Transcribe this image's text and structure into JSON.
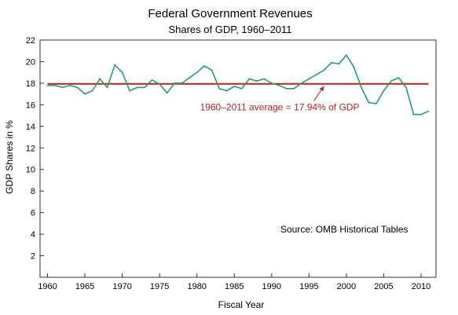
{
  "chart_data": {
    "type": "line",
    "title": "Federal Government Revenues",
    "subtitle": "Shares of GDP, 1960–2011",
    "xlabel": "Fiscal Year",
    "ylabel": "GDP Shares in %",
    "xlim": [
      1959,
      2012
    ],
    "ylim": [
      0,
      22
    ],
    "xticks": [
      1960,
      1965,
      1970,
      1975,
      1980,
      1985,
      1990,
      1995,
      2000,
      2005,
      2010
    ],
    "yticks": [
      2,
      4,
      6,
      8,
      10,
      12,
      14,
      16,
      18,
      20,
      22
    ],
    "grid": false,
    "series": [
      {
        "x": [
          1960,
          1961,
          1962,
          1963,
          1964,
          1965,
          1966,
          1967,
          1968,
          1969,
          1970,
          1971,
          1972,
          1973,
          1974,
          1975,
          1976,
          1977,
          1978,
          1979,
          1980,
          1981,
          1982,
          1983,
          1984,
          1985,
          1986,
          1987,
          1988,
          1989,
          1990,
          1991,
          1992,
          1993,
          1994,
          1995,
          1996,
          1997,
          1998,
          1999,
          2000,
          2001,
          2002,
          2003,
          2004,
          2005,
          2006,
          2007,
          2008,
          2009,
          2010,
          2011
        ],
        "values": [
          17.8,
          17.8,
          17.6,
          17.8,
          17.6,
          17.0,
          17.3,
          18.4,
          17.6,
          19.7,
          19.0,
          17.3,
          17.6,
          17.6,
          18.3,
          17.9,
          17.1,
          18.0,
          18.0,
          18.5,
          19.0,
          19.6,
          19.2,
          17.5,
          17.3,
          17.7,
          17.5,
          18.4,
          18.2,
          18.4,
          18.0,
          17.8,
          17.5,
          17.5,
          18.0,
          18.4,
          18.8,
          19.2,
          19.9,
          19.8,
          20.6,
          19.5,
          17.6,
          16.2,
          16.1,
          17.3,
          18.2,
          18.5,
          17.6,
          15.1,
          15.1,
          15.4
        ],
        "color": "#22a06b"
      }
    ],
    "reference_line": {
      "value": 17.94,
      "label": "1960–2011 average = 17.94% of GDP",
      "color": "#b22222",
      "arrow_to_year": 1997
    },
    "annotations": [
      {
        "text": "Source:  OMB Historical Tables"
      }
    ]
  }
}
